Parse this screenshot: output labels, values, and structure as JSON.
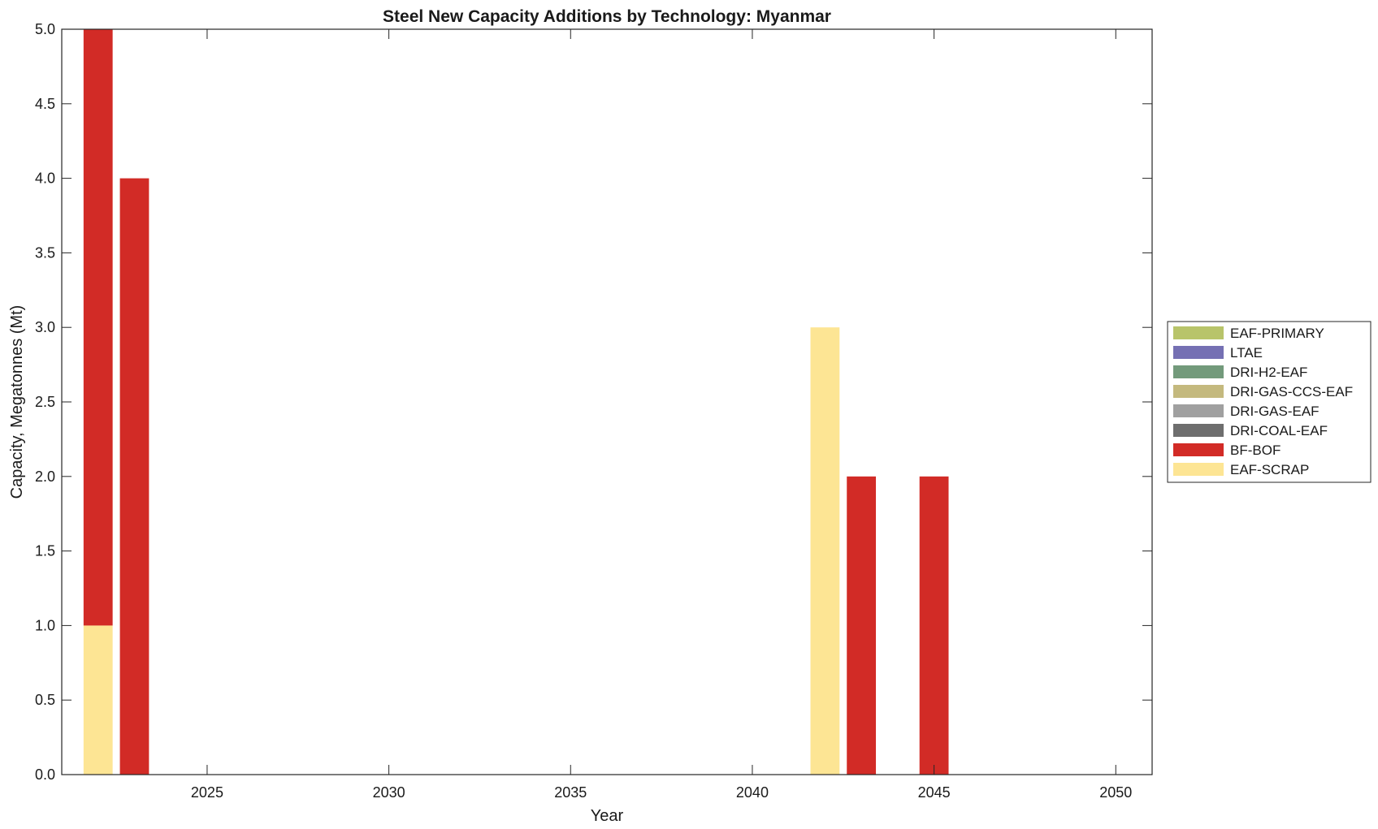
{
  "chart_data": {
    "type": "bar",
    "stacked": true,
    "title": "Steel New Capacity Additions by Technology: Myanmar",
    "xlabel": "Year",
    "ylabel": "Capacity, Megatonnes (Mt)",
    "xlim": [
      2021,
      2051
    ],
    "ylim": [
      0,
      5
    ],
    "x_ticks": [
      "2025",
      "2030",
      "2035",
      "2040",
      "2045",
      "2050"
    ],
    "y_ticks": [
      "0.0",
      "0.5",
      "1.0",
      "1.5",
      "2.0",
      "2.5",
      "3.0",
      "3.5",
      "4.0",
      "4.5",
      "5.0"
    ],
    "grid": false,
    "legend_position": "right",
    "x": [
      2022,
      2023,
      2024,
      2025,
      2026,
      2027,
      2028,
      2029,
      2030,
      2031,
      2032,
      2033,
      2034,
      2035,
      2036,
      2037,
      2038,
      2039,
      2040,
      2041,
      2042,
      2043,
      2044,
      2045,
      2046,
      2047,
      2048,
      2049,
      2050
    ],
    "series": [
      {
        "name": "EAF-PRIMARY",
        "color": "#b8c46a",
        "values": [
          0,
          0,
          0,
          0,
          0,
          0,
          0,
          0,
          0,
          0,
          0,
          0,
          0,
          0,
          0,
          0,
          0,
          0,
          0,
          0,
          0,
          0,
          0,
          0,
          0,
          0,
          0,
          0,
          0
        ]
      },
      {
        "name": "LTAE",
        "color": "#7570b3",
        "values": [
          0,
          0,
          0,
          0,
          0,
          0,
          0,
          0,
          0,
          0,
          0,
          0,
          0,
          0,
          0,
          0,
          0,
          0,
          0,
          0,
          0,
          0,
          0,
          0,
          0,
          0,
          0,
          0,
          0
        ]
      },
      {
        "name": "DRI-H2-EAF",
        "color": "#739a7b",
        "values": [
          0,
          0,
          0,
          0,
          0,
          0,
          0,
          0,
          0,
          0,
          0,
          0,
          0,
          0,
          0,
          0,
          0,
          0,
          0,
          0,
          0,
          0,
          0,
          0,
          0,
          0,
          0,
          0,
          0
        ]
      },
      {
        "name": "DRI-GAS-CCS-EAF",
        "color": "#c4b97e",
        "values": [
          0,
          0,
          0,
          0,
          0,
          0,
          0,
          0,
          0,
          0,
          0,
          0,
          0,
          0,
          0,
          0,
          0,
          0,
          0,
          0,
          0,
          0,
          0,
          0,
          0,
          0,
          0,
          0,
          0
        ]
      },
      {
        "name": "DRI-GAS-EAF",
        "color": "#a0a0a0",
        "values": [
          0,
          0,
          0,
          0,
          0,
          0,
          0,
          0,
          0,
          0,
          0,
          0,
          0,
          0,
          0,
          0,
          0,
          0,
          0,
          0,
          0,
          0,
          0,
          0,
          0,
          0,
          0,
          0,
          0
        ]
      },
      {
        "name": "DRI-COAL-EAF",
        "color": "#6e6e6e",
        "values": [
          0,
          0,
          0,
          0,
          0,
          0,
          0,
          0,
          0,
          0,
          0,
          0,
          0,
          0,
          0,
          0,
          0,
          0,
          0,
          0,
          0,
          0,
          0,
          0,
          0,
          0,
          0,
          0,
          0
        ]
      },
      {
        "name": "BF-BOF",
        "color": "#d22b26",
        "values": [
          4,
          4,
          0,
          0,
          0,
          0,
          0,
          0,
          0,
          0,
          0,
          0,
          0,
          0,
          0,
          0,
          0,
          0,
          0,
          0,
          0,
          2,
          0,
          2,
          0,
          0,
          0,
          0,
          0
        ]
      },
      {
        "name": "EAF-SCRAP",
        "color": "#fde594",
        "values": [
          1,
          0,
          0,
          0,
          0,
          0,
          0,
          0,
          0,
          0,
          0,
          0,
          0,
          0,
          0,
          0,
          0,
          0,
          0,
          0,
          3,
          0,
          0,
          0,
          0,
          0,
          0,
          0,
          0
        ]
      }
    ],
    "stack_order": [
      "EAF-SCRAP",
      "BF-BOF",
      "DRI-COAL-EAF",
      "DRI-GAS-EAF",
      "DRI-GAS-CCS-EAF",
      "DRI-H2-EAF",
      "LTAE",
      "EAF-PRIMARY"
    ]
  }
}
